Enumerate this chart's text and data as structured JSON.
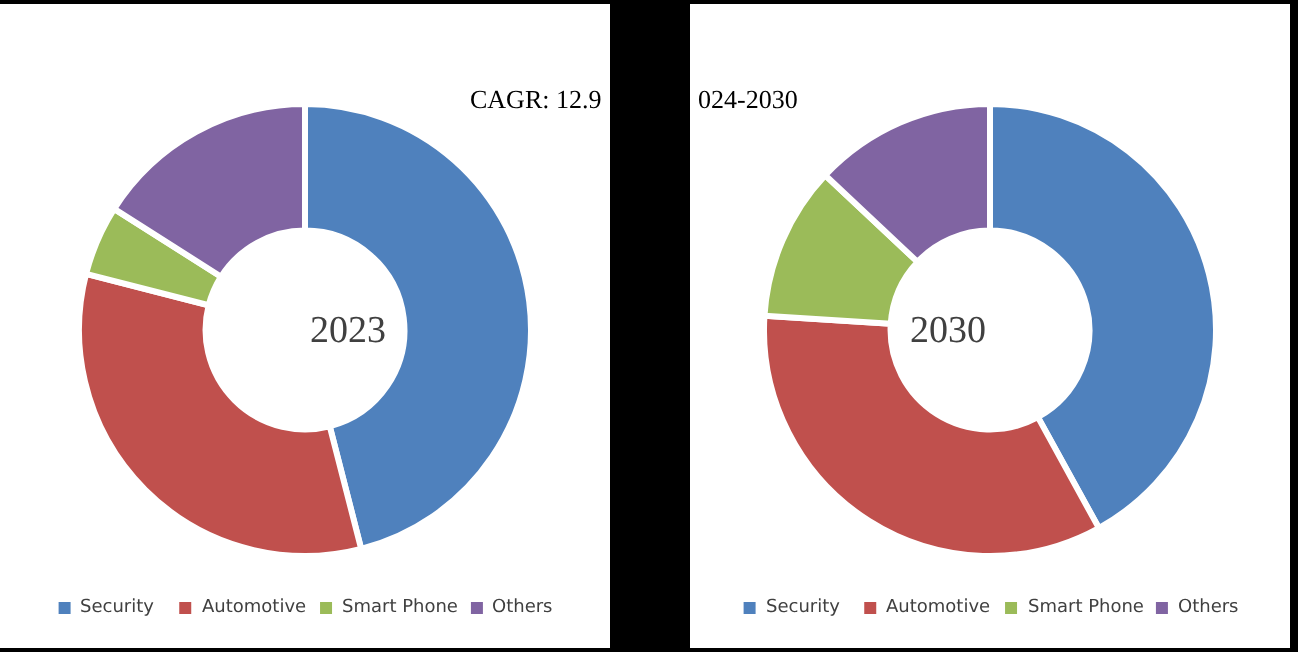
{
  "chart_data": [
    {
      "type": "donut",
      "title": "2023",
      "annotations": [
        "CAGR: 12.9"
      ],
      "categories": [
        "Security",
        "Automotive",
        "Smart Phone",
        "Others"
      ],
      "values": [
        46,
        33,
        5,
        16
      ],
      "colors": [
        "#4f81bd",
        "#c0504d",
        "#9bbb59",
        "#8064a2"
      ],
      "legend": "bottom"
    },
    {
      "type": "donut",
      "title": "2030",
      "annotations": [
        "024-2030"
      ],
      "categories": [
        "Security",
        "Automotive",
        "Smart Phone",
        "Others"
      ],
      "values": [
        42,
        34,
        11,
        13
      ],
      "colors": [
        "#4f81bd",
        "#c0504d",
        "#9bbb59",
        "#8064a2"
      ],
      "legend": "bottom"
    }
  ]
}
